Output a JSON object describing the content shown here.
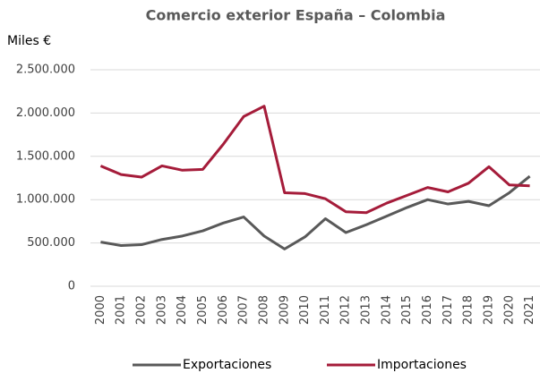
{
  "chart_data": {
    "type": "line",
    "title": "Comercio exterior España – Colombia",
    "y_label": "Miles €",
    "categories": [
      "2000",
      "2001",
      "2002",
      "2003",
      "2004",
      "2005",
      "2006",
      "2007",
      "2008",
      "2009",
      "2010",
      "2011",
      "2012",
      "2013",
      "2014",
      "2015",
      "2016",
      "2017",
      "2018",
      "2019",
      "2020",
      "2021"
    ],
    "series": [
      {
        "name": "Exportaciones",
        "color": "#595959",
        "values": [
          510000,
          470000,
          480000,
          540000,
          580000,
          640000,
          730000,
          800000,
          580000,
          430000,
          570000,
          780000,
          620000,
          710000,
          810000,
          910000,
          1000000,
          950000,
          980000,
          930000,
          1080000,
          1270000
        ]
      },
      {
        "name": "Importaciones",
        "color": "#a51c3a",
        "values": [
          1390000,
          1290000,
          1260000,
          1390000,
          1340000,
          1350000,
          1640000,
          1960000,
          2080000,
          1080000,
          1070000,
          1010000,
          860000,
          850000,
          960000,
          1050000,
          1140000,
          1090000,
          1190000,
          1380000,
          1170000,
          1160000
        ]
      }
    ],
    "ylim": [
      0,
      2500000
    ],
    "yticks": [
      0,
      {
        "value": 500000,
        "label": "500.000"
      },
      {
        "value": 1000000,
        "label": "1.000.000"
      },
      {
        "value": 1500000,
        "label": "1.500.000"
      },
      {
        "value": 2000000,
        "label": "2.000.000"
      },
      {
        "value": 2500000,
        "label": "2.500.000"
      }
    ],
    "grid": true,
    "legend": "bottom"
  }
}
